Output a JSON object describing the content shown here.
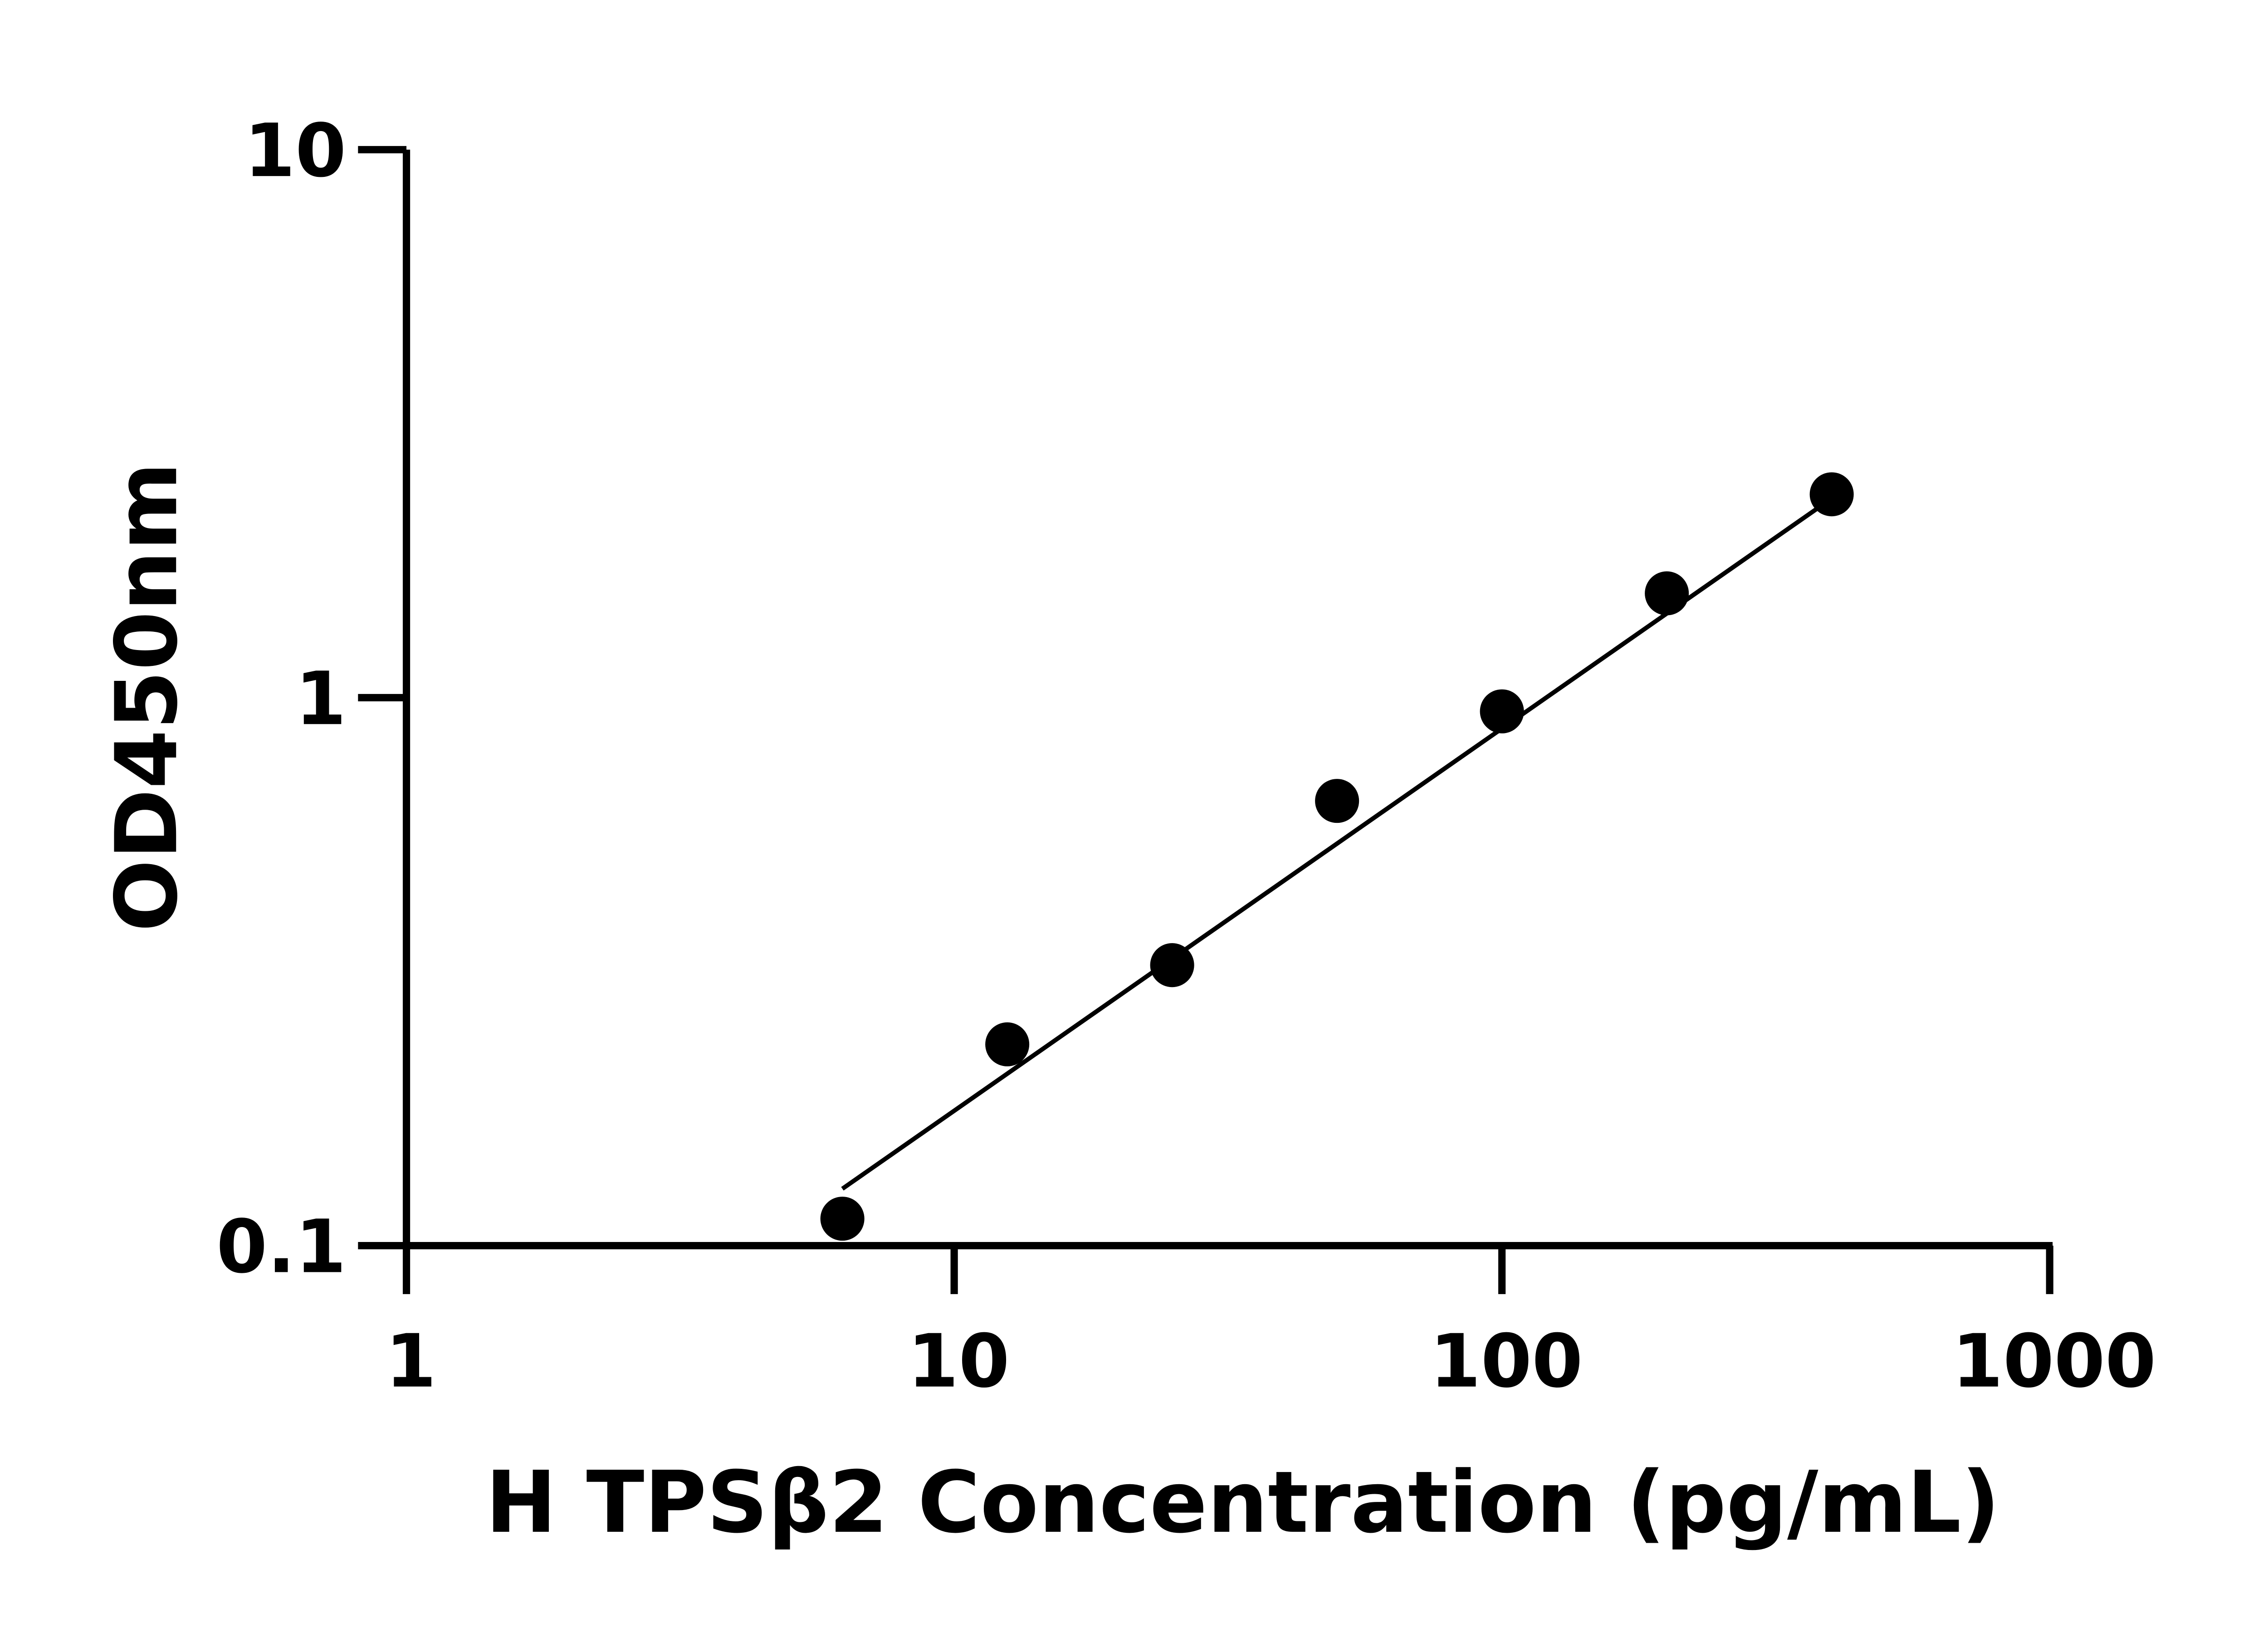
{
  "chart_data": {
    "type": "scatter",
    "title": "",
    "xlabel": "H TPSβ2 Concentration (pg/mL)",
    "ylabel": "OD450nm",
    "x_scale": "log",
    "y_scale": "log",
    "xlim": [
      1,
      1000
    ],
    "ylim": [
      0.1,
      10
    ],
    "x_ticks": [
      1,
      10,
      100,
      1000
    ],
    "x_tick_labels": [
      "1",
      "10",
      "100",
      "1000"
    ],
    "y_ticks": [
      0.1,
      1,
      10
    ],
    "y_tick_labels": [
      "0.1",
      "1",
      "10"
    ],
    "grid": false,
    "legend": "none",
    "colors": {
      "points": "#000000",
      "fit_line": "#000000",
      "axes": "#000000"
    },
    "series": [
      {
        "x": [
          6.25,
          12.5,
          25,
          50,
          100,
          200,
          400
        ],
        "y": [
          0.112,
          0.233,
          0.325,
          0.648,
          0.944,
          1.55,
          2.35
        ]
      }
    ],
    "fit_line": {
      "x": [
        6.25,
        400
      ],
      "y": [
        0.127,
        2.31
      ]
    }
  }
}
